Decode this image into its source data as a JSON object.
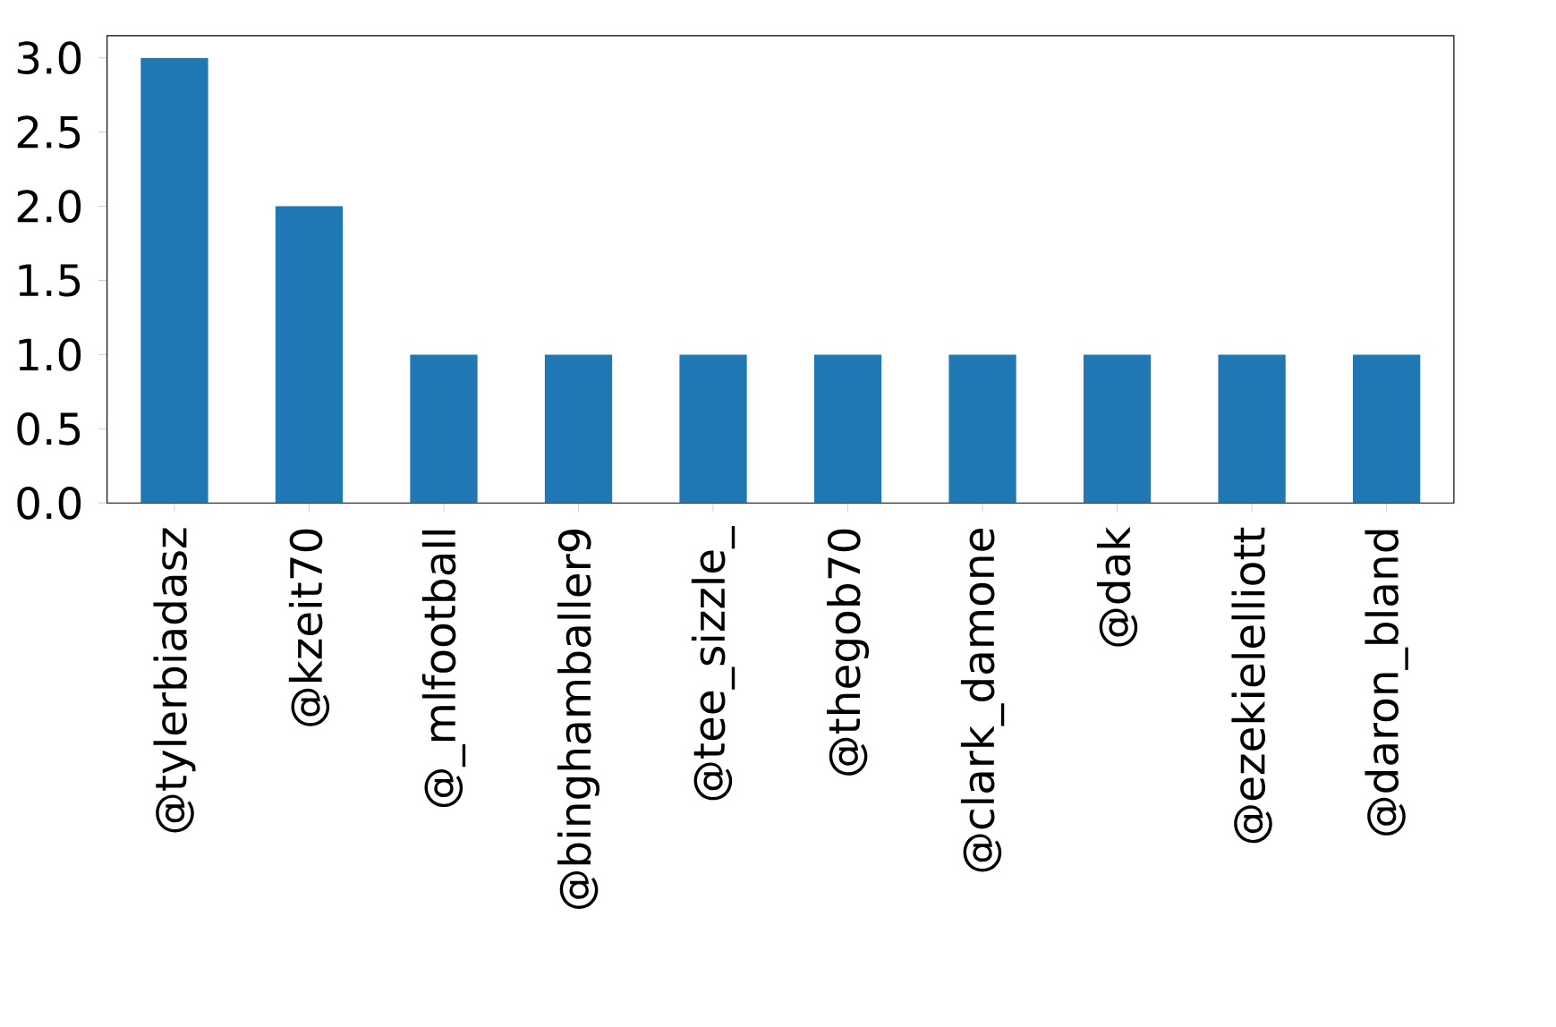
{
  "chart_data": {
    "type": "bar",
    "categories": [
      "@tylerbiadasz",
      "@kzeit70",
      "@_mlfootball",
      "@binghamballer9",
      "@tee_sizzle_",
      "@thegob70",
      "@clark_damone",
      "@dak",
      "@ezekielelliott",
      "@daron_bland"
    ],
    "values": [
      3,
      2,
      1,
      1,
      1,
      1,
      1,
      1,
      1,
      1
    ],
    "color": "#1f77b4",
    "ylim": [
      0,
      3.15
    ],
    "yticks": [
      {
        "value": 0,
        "label": "0.0"
      },
      {
        "value": 0.5,
        "label": "0.5"
      },
      {
        "value": 1,
        "label": "1.0"
      },
      {
        "value": 1.5,
        "label": "1.5"
      },
      {
        "value": 2,
        "label": "2.0"
      },
      {
        "value": 2.5,
        "label": "2.5"
      },
      {
        "value": 3,
        "label": "3.0"
      }
    ],
    "grid": false
  }
}
